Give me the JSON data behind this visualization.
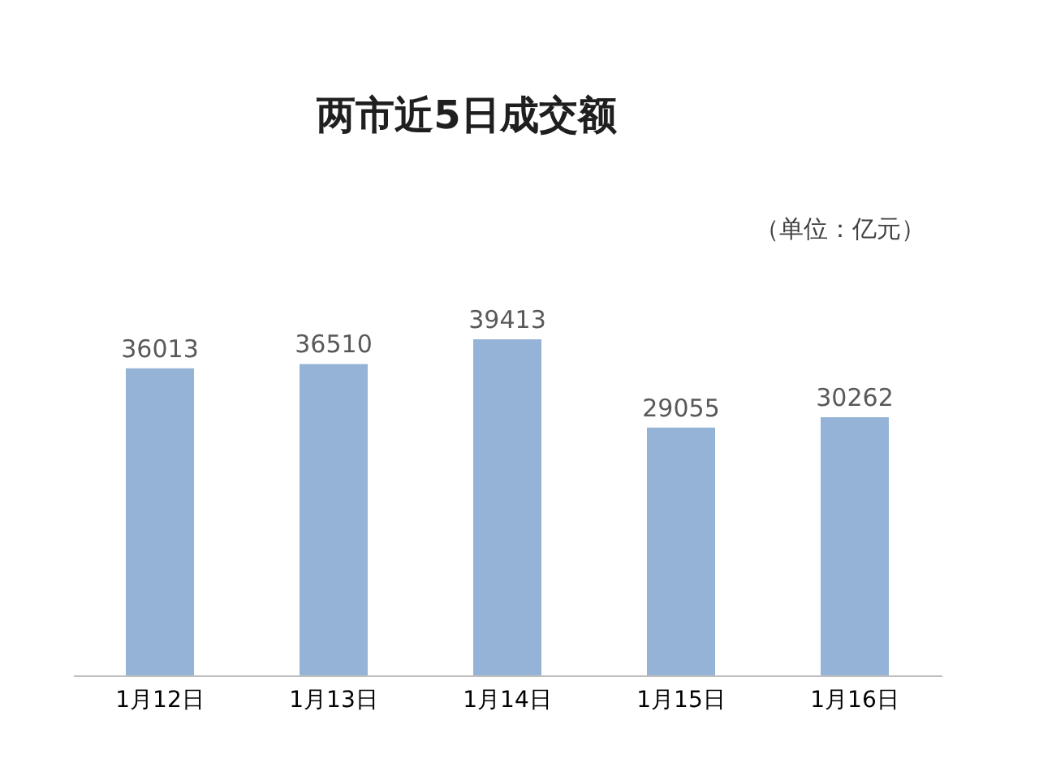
{
  "chart_data": {
    "type": "bar",
    "title": "两市近5日成交额",
    "annotations": [
      "（单位：亿元）"
    ],
    "categories": [
      "1月12日",
      "1月13日",
      "1月14日",
      "1月15日",
      "1月16日"
    ],
    "values": [
      36013,
      36510,
      39413,
      29055,
      30262
    ],
    "color": "#95b3d7",
    "tick_labels": "x",
    "data_labels": true,
    "grid": false
  }
}
